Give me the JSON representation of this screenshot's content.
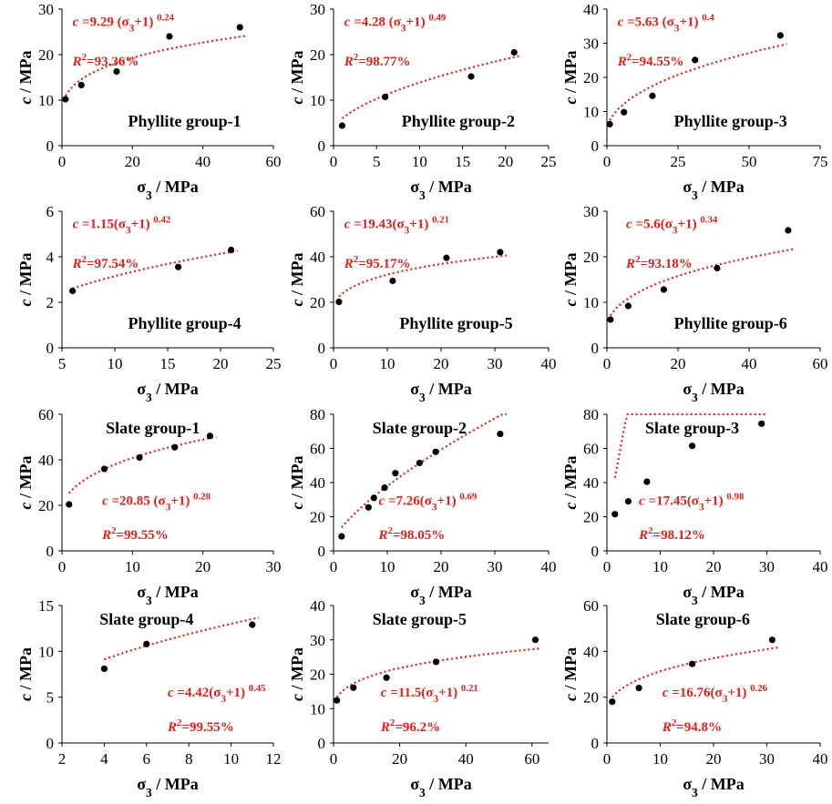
{
  "figure": {
    "x_axis_title": "σ3 / MPa",
    "y_axis_title": "c / MPa",
    "colors": {
      "fit": "#e0201b",
      "points": "#000000",
      "axes": "#000000"
    }
  },
  "chart_data": [
    {
      "type": "scatter",
      "title": "Phyllite group-1",
      "equation": "c =9.29 (σ3+1) 0.24",
      "r2": "R2=93.36%",
      "fit": {
        "a": 9.29,
        "b": 0.24
      },
      "x": [
        1,
        5.5,
        15.5,
        30.5,
        50.5
      ],
      "y": [
        10.2,
        13.3,
        16.3,
        24,
        26
      ],
      "xlim": [
        0,
        60
      ],
      "ylim": [
        0,
        30
      ],
      "xticks": [
        0,
        20,
        40,
        60
      ],
      "yticks": [
        0,
        10,
        20,
        30
      ]
    },
    {
      "type": "scatter",
      "title": "Phyllite group-2",
      "equation": "c =4.28 (σ3+1) 0.49",
      "r2": "R2=98.77%",
      "fit": {
        "a": 4.28,
        "b": 0.49
      },
      "x": [
        1,
        6,
        16,
        21
      ],
      "y": [
        4.4,
        10.7,
        15.2,
        20.5
      ],
      "xlim": [
        0,
        25
      ],
      "ylim": [
        0,
        30
      ],
      "xticks": [
        0,
        5,
        10,
        15,
        20,
        25
      ],
      "yticks": [
        0,
        10,
        20,
        30
      ]
    },
    {
      "type": "scatter",
      "title": "Phyllite group-3",
      "equation": "c =5.63 (σ3+1) 0.4",
      "r2": "R2=94.55%",
      "fit": {
        "a": 5.63,
        "b": 0.4
      },
      "x": [
        1,
        6,
        16,
        31,
        61
      ],
      "y": [
        6.3,
        9.8,
        14.6,
        25.1,
        32.3
      ],
      "xlim": [
        0,
        75
      ],
      "ylim": [
        0,
        40
      ],
      "xticks": [
        0,
        25,
        50,
        75
      ],
      "yticks": [
        0,
        10,
        20,
        30,
        40
      ]
    },
    {
      "type": "scatter",
      "title": "Phyllite group-4",
      "equation": "c =1.15(σ3+1) 0.42",
      "r2": "R2=97.54%",
      "fit": {
        "a": 1.15,
        "b": 0.42
      },
      "x": [
        6,
        16,
        21
      ],
      "y": [
        2.5,
        3.55,
        4.3
      ],
      "xlim": [
        5,
        25
      ],
      "ylim": [
        0,
        6
      ],
      "xticks": [
        5,
        10,
        15,
        20,
        25
      ],
      "yticks": [
        0,
        2,
        4,
        6
      ]
    },
    {
      "type": "scatter",
      "title": "Phyllite group-5",
      "equation": "c =19.43(σ3+1) 0.21",
      "r2": "R2=95.17%",
      "fit": {
        "a": 19.43,
        "b": 0.21
      },
      "x": [
        1,
        11,
        21,
        31
      ],
      "y": [
        20.2,
        29.4,
        39.5,
        42
      ],
      "xlim": [
        0,
        40
      ],
      "ylim": [
        0,
        60
      ],
      "xticks": [
        0,
        10,
        20,
        30,
        40
      ],
      "yticks": [
        0,
        20,
        40,
        60
      ]
    },
    {
      "type": "scatter",
      "title": "Phyllite group-6",
      "equation": "c =5.6(σ3+1) 0.34",
      "r2": "R2=93.18%",
      "fit": {
        "a": 5.6,
        "b": 0.34
      },
      "x": [
        1,
        6,
        16,
        31,
        51
      ],
      "y": [
        6.2,
        9.2,
        12.8,
        17.5,
        25.8
      ],
      "xlim": [
        0,
        60
      ],
      "ylim": [
        0,
        30
      ],
      "xticks": [
        0,
        20,
        40,
        60
      ],
      "yticks": [
        0,
        10,
        20,
        30
      ]
    },
    {
      "type": "scatter",
      "title": "Slate group-1",
      "equation": "c =20.85 (σ3+1) 0.28",
      "r2": "R2=99.55%",
      "fit": {
        "a": 20.85,
        "b": 0.28
      },
      "x": [
        1,
        6,
        11,
        16,
        21
      ],
      "y": [
        20.4,
        36,
        41,
        45.5,
        50.5
      ],
      "xlim": [
        0,
        30
      ],
      "ylim": [
        0,
        60
      ],
      "xticks": [
        0,
        10,
        20,
        30
      ],
      "yticks": [
        0,
        20,
        40,
        60
      ]
    },
    {
      "type": "scatter",
      "title": "Slate group-2",
      "equation": "c =7.26(σ3+1) 0.69",
      "r2": "R2=98.05%",
      "fit": {
        "a": 7.26,
        "b": 0.69
      },
      "x": [
        1.5,
        6.5,
        7.5,
        9.5,
        11.5,
        16,
        19,
        31
      ],
      "y": [
        8.5,
        25.5,
        31,
        37,
        45.5,
        51.5,
        58,
        68.5
      ],
      "xlim": [
        0,
        40
      ],
      "ylim": [
        0,
        80
      ],
      "xticks": [
        0,
        10,
        20,
        30,
        40
      ],
      "yticks": [
        0,
        20,
        40,
        60,
        80
      ]
    },
    {
      "type": "scatter",
      "title": "Slate group-3",
      "equation": "c =17.45(σ3+1) 0.98",
      "r2": "R2=98.12%",
      "fit": {
        "a": 17.45,
        "b": 0.98
      },
      "x": [
        1.5,
        4,
        7.5,
        16,
        29
      ],
      "y": [
        21.5,
        29,
        40.5,
        61.5,
        74.5
      ],
      "xlim": [
        0,
        40
      ],
      "ylim": [
        0,
        80
      ],
      "xticks": [
        0,
        10,
        20,
        30,
        40
      ],
      "yticks": [
        0,
        20,
        40,
        60,
        80
      ]
    },
    {
      "type": "scatter",
      "title": "Slate group-4",
      "equation": "c =4.42(σ3+1) 0.45",
      "r2": "R2=99.55%",
      "fit": {
        "a": 4.42,
        "b": 0.45
      },
      "x": [
        4,
        6,
        11
      ],
      "y": [
        8.1,
        10.8,
        12.9
      ],
      "xlim": [
        2,
        12
      ],
      "ylim": [
        0,
        15
      ],
      "xticks": [
        2,
        4,
        6,
        8,
        10,
        12
      ],
      "yticks": [
        0,
        5,
        10,
        15
      ]
    },
    {
      "type": "scatter",
      "title": "Slate group-5",
      "equation": "c =11.5(σ3+1) 0.21",
      "r2": "R2=96.2%",
      "fit": {
        "a": 11.5,
        "b": 0.21
      },
      "x": [
        1,
        6,
        16,
        31,
        61
      ],
      "y": [
        12.4,
        16.1,
        19,
        23.6,
        30
      ],
      "xlim": [
        0,
        65
      ],
      "ylim": [
        0,
        40
      ],
      "xticks": [
        0,
        20,
        40,
        60
      ],
      "yticks": [
        0,
        10,
        20,
        30,
        40
      ]
    },
    {
      "type": "scatter",
      "title": "Slate group-6",
      "equation": "c =16.76(σ3+1) 0.26",
      "r2": "R2=94.8%",
      "fit": {
        "a": 16.76,
        "b": 0.26
      },
      "x": [
        1,
        6,
        16,
        31
      ],
      "y": [
        18,
        24,
        34.5,
        45
      ],
      "xlim": [
        0,
        40
      ],
      "ylim": [
        0,
        60
      ],
      "xticks": [
        0,
        10,
        20,
        30,
        40
      ],
      "yticks": [
        0,
        20,
        40,
        60
      ]
    }
  ]
}
